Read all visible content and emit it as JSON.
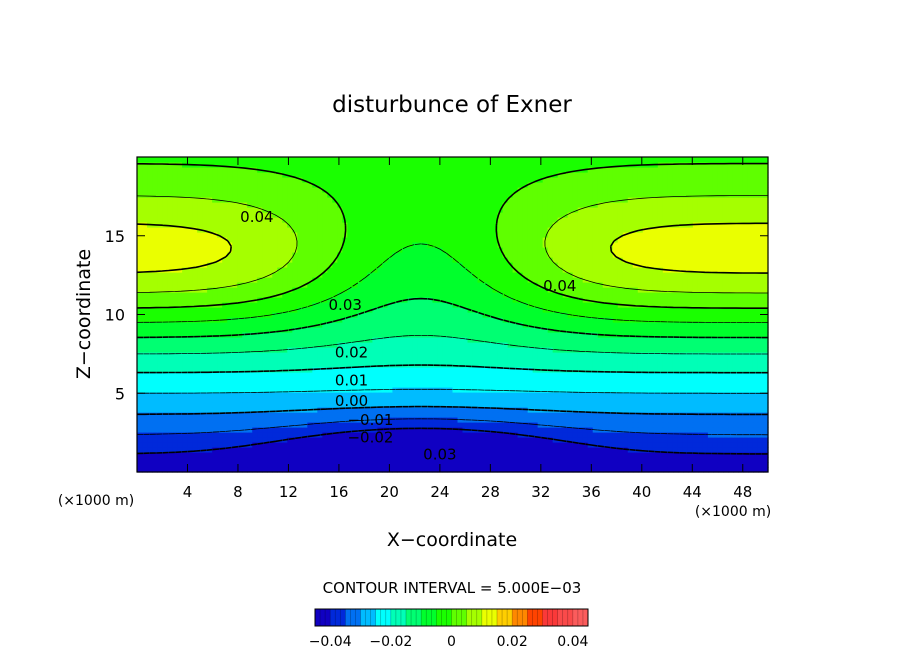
{
  "chart_data": {
    "type": "heatmap",
    "title": "disturbunce of Exner",
    "xlabel": "X−coordinate",
    "ylabel": "Z−coordinate",
    "x_unit_left": "(×1000 m)",
    "x_unit_right": "(×1000 m)",
    "xlim": [
      0,
      50
    ],
    "ylim": [
      0,
      20
    ],
    "x_ticks": [
      4,
      8,
      12,
      16,
      20,
      24,
      28,
      32,
      36,
      40,
      44,
      48
    ],
    "y_ticks": [
      5,
      10,
      15
    ],
    "contour_interval_text": "CONTOUR INTERVAL = 5.000E−03",
    "contour_interval": 0.005,
    "value_range": [
      -0.045,
      0.045
    ],
    "contour_labels": [
      {
        "text": "0.04",
        "x": 9.5,
        "z": 16.2
      },
      {
        "text": "0.04",
        "x": 33.5,
        "z": 11.8
      },
      {
        "text": "0.03",
        "x": 16.5,
        "z": 10.6
      },
      {
        "text": "0.02",
        "x": 17.0,
        "z": 7.6
      },
      {
        "text": "0.01",
        "x": 17.0,
        "z": 5.8
      },
      {
        "text": "0.00",
        "x": 17.0,
        "z": 4.5
      },
      {
        "text": "−0.01",
        "x": 18.5,
        "z": 3.3
      },
      {
        "text": "−0.02",
        "x": 18.5,
        "z": 2.2
      },
      {
        "text": "0.03",
        "x": 24.0,
        "z": 1.1
      }
    ],
    "colorbar": {
      "ticks": [
        -0.04,
        -0.02,
        0,
        0.02,
        0.04
      ],
      "tick_labels": [
        "−0.04",
        "−0.02",
        "0",
        "0.02",
        "0.04"
      ]
    },
    "grid": false,
    "legend": "colorbar-bottom"
  }
}
